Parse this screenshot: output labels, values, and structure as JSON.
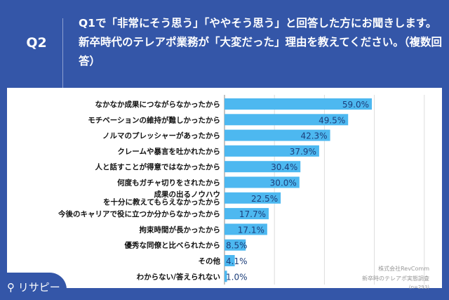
{
  "header": {
    "q": "Q2",
    "text": "Q1で「非常にそう思う」「ややそう思う」と回答した方にお聞きします。新卒時代のテレアポ業務が「大変だった」理由を教えてください。（複数回答）"
  },
  "source": {
    "company": "株式会社RevComm",
    "survey": "新卒時のテレアポ実態調査",
    "n": "(n=293)"
  },
  "logo": "リサピー",
  "chart_data": {
    "type": "bar",
    "orientation": "horizontal",
    "xlim": [
      0,
      80
    ],
    "grid": true,
    "bar_color": "#4db8f0",
    "categories": [
      "なかなか成果につながらなかったから",
      "モチベーションの維持が難しかったから",
      "ノルマのプレッシャーがあったから",
      "クレームや暴言を吐かれたから",
      "人と話すことが得意ではなかったから",
      "何度もガチャ切りをされたから",
      "成果の出るノウハウを十分に教えてもらえなかったから",
      "今後のキャリアで役に立つか分からなかったから",
      "拘束時間が長かったから",
      "優秀な同僚と比べられたから",
      "その他",
      "わからない/答えられない"
    ],
    "values": [
      59.0,
      49.5,
      42.3,
      37.9,
      30.4,
      30.0,
      22.5,
      17.7,
      17.1,
      8.5,
      4.1,
      1.0
    ],
    "labels": [
      "59.0%",
      "49.5%",
      "42.3%",
      "37.9%",
      "30.4%",
      "30.0%",
      "22.5%",
      "17.7%",
      "17.1%",
      "8.5%",
      "4.1%",
      "1.0%"
    ]
  }
}
